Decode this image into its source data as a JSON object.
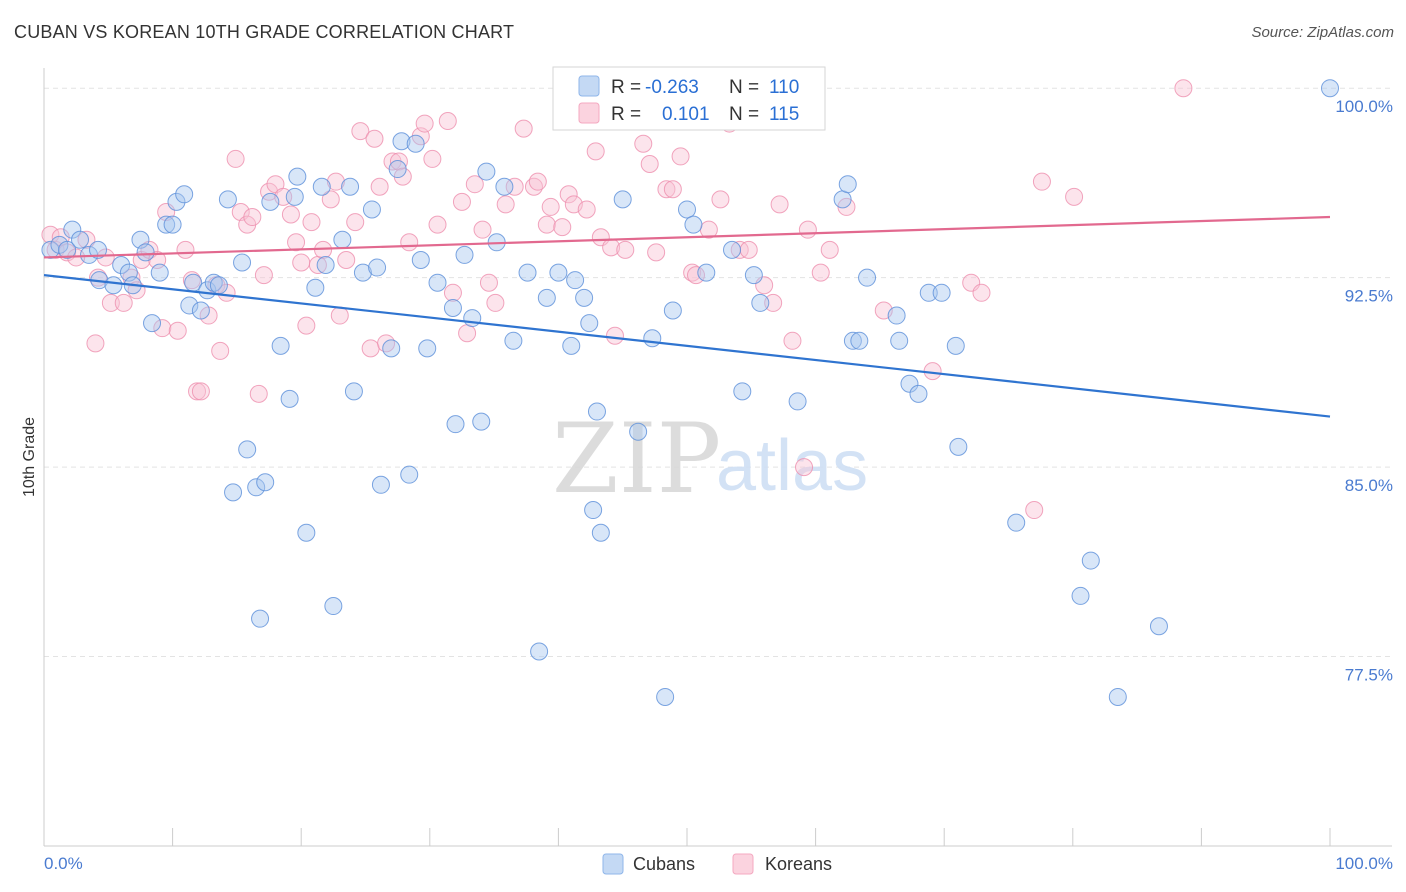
{
  "header": {
    "title": "CUBAN VS KOREAN 10TH GRADE CORRELATION CHART",
    "source": "Source: ZipAtlas.com"
  },
  "legend": {
    "rows": [
      {
        "r_label": "R =",
        "r_value": "-0.263",
        "n_label": "N =",
        "n_value": "110",
        "color": "#8fb6ea"
      },
      {
        "r_label": "R =",
        "r_value": "0.101",
        "n_label": "N =",
        "n_value": "115",
        "color": "#f4a8c0"
      }
    ]
  },
  "bottom_legend": [
    {
      "label": "Cubans",
      "color": "#8fb6ea"
    },
    {
      "label": "Koreans",
      "color": "#f4a8c0"
    }
  ],
  "watermark": {
    "part1": "ZIP",
    "part2": "atlas"
  },
  "chart_data": {
    "type": "scatter",
    "xlabel": "",
    "ylabel": "10th Grade",
    "xlim": [
      0,
      100
    ],
    "ylim": [
      70,
      100.8
    ],
    "x_tick_labels": [
      "0.0%",
      "100.0%"
    ],
    "y_ticks": [
      77.5,
      85.0,
      92.5,
      100.0
    ],
    "y_tick_labels": [
      "77.5%",
      "85.0%",
      "92.5%",
      "100.0%"
    ],
    "grid": true,
    "series": [
      {
        "name": "Cubans",
        "color": "#5b8fd9",
        "fill": "#a9c8f0",
        "trend": {
          "x": [
            0,
            100
          ],
          "y": [
            92.6,
            87.0
          ],
          "color": "#2f74d0"
        },
        "points": [
          [
            0.5,
            93.6
          ],
          [
            1.2,
            93.8
          ],
          [
            1.8,
            93.6
          ],
          [
            2.2,
            94.4
          ],
          [
            2.8,
            94.0
          ],
          [
            3.5,
            93.4
          ],
          [
            4.2,
            93.6
          ],
          [
            4.3,
            92.4
          ],
          [
            5.4,
            92.2
          ],
          [
            6.0,
            93.0
          ],
          [
            6.6,
            92.7
          ],
          [
            6.9,
            92.2
          ],
          [
            7.5,
            94.0
          ],
          [
            7.9,
            93.5
          ],
          [
            8.4,
            90.7
          ],
          [
            9.0,
            92.7
          ],
          [
            9.5,
            94.6
          ],
          [
            10.0,
            94.6
          ],
          [
            10.3,
            95.5
          ],
          [
            10.9,
            95.8
          ],
          [
            11.3,
            91.4
          ],
          [
            11.6,
            92.3
          ],
          [
            12.2,
            91.2
          ],
          [
            12.7,
            92.0
          ],
          [
            13.2,
            92.3
          ],
          [
            13.6,
            92.2
          ],
          [
            14.3,
            95.6
          ],
          [
            14.7,
            84.0
          ],
          [
            15.4,
            93.1
          ],
          [
            15.8,
            85.7
          ],
          [
            16.5,
            84.2
          ],
          [
            16.8,
            79.0
          ],
          [
            17.2,
            84.4
          ],
          [
            17.6,
            95.5
          ],
          [
            18.4,
            89.8
          ],
          [
            19.1,
            87.7
          ],
          [
            19.5,
            95.7
          ],
          [
            19.7,
            96.5
          ],
          [
            20.4,
            82.4
          ],
          [
            21.1,
            92.1
          ],
          [
            21.6,
            96.1
          ],
          [
            21.9,
            93.0
          ],
          [
            22.5,
            79.5
          ],
          [
            23.2,
            94.0
          ],
          [
            23.8,
            96.1
          ],
          [
            24.1,
            88.0
          ],
          [
            24.8,
            92.7
          ],
          [
            25.5,
            95.2
          ],
          [
            25.9,
            92.9
          ],
          [
            26.2,
            84.3
          ],
          [
            27.0,
            89.7
          ],
          [
            27.5,
            96.8
          ],
          [
            27.8,
            97.9
          ],
          [
            28.4,
            84.7
          ],
          [
            28.9,
            97.8
          ],
          [
            29.3,
            93.2
          ],
          [
            29.8,
            89.7
          ],
          [
            30.6,
            92.3
          ],
          [
            31.8,
            91.3
          ],
          [
            32.0,
            86.7
          ],
          [
            32.7,
            93.4
          ],
          [
            33.3,
            90.9
          ],
          [
            34.0,
            86.8
          ],
          [
            34.4,
            96.7
          ],
          [
            35.2,
            93.9
          ],
          [
            35.8,
            96.1
          ],
          [
            36.5,
            90.0
          ],
          [
            37.6,
            92.7
          ],
          [
            38.5,
            77.7
          ],
          [
            39.1,
            91.7
          ],
          [
            40.0,
            92.7
          ],
          [
            41.0,
            89.8
          ],
          [
            41.3,
            92.4
          ],
          [
            42.0,
            91.7
          ],
          [
            42.4,
            90.7
          ],
          [
            42.7,
            83.3
          ],
          [
            43.0,
            87.2
          ],
          [
            43.3,
            82.4
          ],
          [
            45.0,
            95.6
          ],
          [
            46.2,
            86.4
          ],
          [
            47.3,
            90.1
          ],
          [
            48.3,
            75.9
          ],
          [
            48.9,
            91.2
          ],
          [
            50.0,
            95.2
          ],
          [
            50.5,
            94.6
          ],
          [
            51.5,
            92.7
          ],
          [
            53.5,
            93.6
          ],
          [
            54.3,
            88.0
          ],
          [
            55.2,
            92.6
          ],
          [
            55.7,
            91.5
          ],
          [
            58.6,
            87.6
          ],
          [
            62.1,
            95.6
          ],
          [
            62.5,
            96.2
          ],
          [
            62.9,
            90.0
          ],
          [
            63.4,
            90.0
          ],
          [
            64.0,
            92.5
          ],
          [
            66.3,
            91.0
          ],
          [
            66.5,
            90.0
          ],
          [
            67.3,
            88.3
          ],
          [
            68.0,
            87.9
          ],
          [
            68.8,
            91.9
          ],
          [
            69.8,
            91.9
          ],
          [
            70.9,
            89.8
          ],
          [
            71.1,
            85.8
          ],
          [
            75.6,
            82.8
          ],
          [
            80.6,
            79.9
          ],
          [
            81.4,
            81.3
          ],
          [
            83.5,
            75.9
          ],
          [
            86.7,
            78.7
          ],
          [
            100.0,
            100.0
          ]
        ]
      },
      {
        "name": "Koreans",
        "color": "#ee8fae",
        "fill": "#f8c4d4",
        "trend": {
          "x": [
            0,
            100
          ],
          "y": [
            93.3,
            94.9
          ],
          "color": "#e2698f"
        },
        "points": [
          [
            0.5,
            94.2
          ],
          [
            0.9,
            93.6
          ],
          [
            1.3,
            94.1
          ],
          [
            1.8,
            93.5
          ],
          [
            2.5,
            93.3
          ],
          [
            3.3,
            94.0
          ],
          [
            4.0,
            89.9
          ],
          [
            4.2,
            92.5
          ],
          [
            4.8,
            93.3
          ],
          [
            5.2,
            91.5
          ],
          [
            6.2,
            91.5
          ],
          [
            6.8,
            92.5
          ],
          [
            7.2,
            92.0
          ],
          [
            7.6,
            93.2
          ],
          [
            8.2,
            93.6
          ],
          [
            8.8,
            93.2
          ],
          [
            9.2,
            90.5
          ],
          [
            9.5,
            95.1
          ],
          [
            10.4,
            90.4
          ],
          [
            11.0,
            93.6
          ],
          [
            11.5,
            92.4
          ],
          [
            11.9,
            88.0
          ],
          [
            12.2,
            88.0
          ],
          [
            12.8,
            91.0
          ],
          [
            13.4,
            92.2
          ],
          [
            13.7,
            89.6
          ],
          [
            14.2,
            91.9
          ],
          [
            14.9,
            97.2
          ],
          [
            15.3,
            95.1
          ],
          [
            15.8,
            94.6
          ],
          [
            16.2,
            94.9
          ],
          [
            16.7,
            87.9
          ],
          [
            17.1,
            92.6
          ],
          [
            17.5,
            95.9
          ],
          [
            18.0,
            96.2
          ],
          [
            18.6,
            95.7
          ],
          [
            19.2,
            95.0
          ],
          [
            19.6,
            93.9
          ],
          [
            20.0,
            93.1
          ],
          [
            20.4,
            90.6
          ],
          [
            20.8,
            94.7
          ],
          [
            21.3,
            93.0
          ],
          [
            21.7,
            93.6
          ],
          [
            22.3,
            95.6
          ],
          [
            22.7,
            96.3
          ],
          [
            23.0,
            91.0
          ],
          [
            23.5,
            93.2
          ],
          [
            24.2,
            94.7
          ],
          [
            24.6,
            98.3
          ],
          [
            25.4,
            89.7
          ],
          [
            25.7,
            98.0
          ],
          [
            26.1,
            96.1
          ],
          [
            26.6,
            89.9
          ],
          [
            27.1,
            97.1
          ],
          [
            27.6,
            97.1
          ],
          [
            27.9,
            96.5
          ],
          [
            28.4,
            93.9
          ],
          [
            29.3,
            98.1
          ],
          [
            29.6,
            98.6
          ],
          [
            30.2,
            97.2
          ],
          [
            30.6,
            94.6
          ],
          [
            31.4,
            98.7
          ],
          [
            31.8,
            91.9
          ],
          [
            32.5,
            95.5
          ],
          [
            32.9,
            90.3
          ],
          [
            33.5,
            96.2
          ],
          [
            34.1,
            94.4
          ],
          [
            34.6,
            92.3
          ],
          [
            35.1,
            91.5
          ],
          [
            35.9,
            95.4
          ],
          [
            36.6,
            96.1
          ],
          [
            37.3,
            98.4
          ],
          [
            38.1,
            96.1
          ],
          [
            38.4,
            96.3
          ],
          [
            39.1,
            94.6
          ],
          [
            39.4,
            95.3
          ],
          [
            40.3,
            94.5
          ],
          [
            40.8,
            95.8
          ],
          [
            41.2,
            95.4
          ],
          [
            42.2,
            95.2
          ],
          [
            42.9,
            97.5
          ],
          [
            43.3,
            94.1
          ],
          [
            44.1,
            93.7
          ],
          [
            44.4,
            90.2
          ],
          [
            45.2,
            93.6
          ],
          [
            46.6,
            97.8
          ],
          [
            47.1,
            97.0
          ],
          [
            47.6,
            93.5
          ],
          [
            48.4,
            96.0
          ],
          [
            48.9,
            96.0
          ],
          [
            49.5,
            97.3
          ],
          [
            50.4,
            92.7
          ],
          [
            50.7,
            92.6
          ],
          [
            51.7,
            94.4
          ],
          [
            52.6,
            95.6
          ],
          [
            53.3,
            98.6
          ],
          [
            54.1,
            93.6
          ],
          [
            54.8,
            93.6
          ],
          [
            56.0,
            92.2
          ],
          [
            56.7,
            91.5
          ],
          [
            57.2,
            95.4
          ],
          [
            58.2,
            90.0
          ],
          [
            59.1,
            85.0
          ],
          [
            59.4,
            94.4
          ],
          [
            60.4,
            92.7
          ],
          [
            61.1,
            93.6
          ],
          [
            62.4,
            95.3
          ],
          [
            65.3,
            91.2
          ],
          [
            69.1,
            88.8
          ],
          [
            72.1,
            92.3
          ],
          [
            72.9,
            91.9
          ],
          [
            77.0,
            83.3
          ],
          [
            77.6,
            96.3
          ],
          [
            80.1,
            95.7
          ],
          [
            88.6,
            100.0
          ]
        ]
      }
    ]
  }
}
